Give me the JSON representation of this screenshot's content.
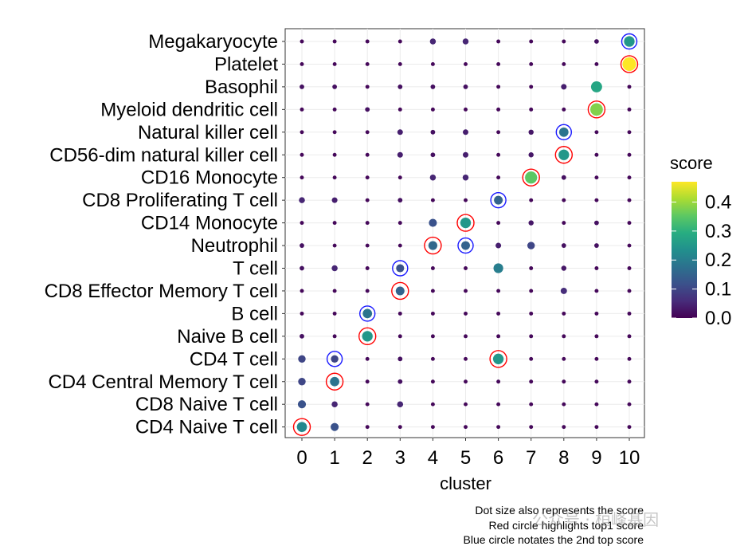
{
  "chart_data": {
    "type": "scatter",
    "subtype": "dot-plot",
    "xlabel": "cluster",
    "ylabel": "",
    "x_categories": [
      "0",
      "1",
      "2",
      "3",
      "4",
      "5",
      "6",
      "7",
      "8",
      "9",
      "10"
    ],
    "y_categories": [
      "CD4 Naive T cell",
      "CD8 Naive T cell",
      "CD4 Central Memory T cell",
      "CD4 T cell",
      "Naive B cell",
      "B cell",
      "CD8 Effector Memory T cell",
      "T cell",
      "Neutrophil",
      "CD14 Monocyte",
      "CD8 Proliferating T cell",
      "CD16 Monocyte",
      "CD56-dim natural killer cell",
      "Natural killer cell",
      "Myeloid dendritic cell",
      "Basophil",
      "Platelet",
      "Megakaryocyte"
    ],
    "legend": {
      "title": "score",
      "ticks": [
        "0.0",
        "0.1",
        "0.2",
        "0.3",
        "0.4"
      ],
      "range": [
        0,
        0.47
      ],
      "position": "right"
    },
    "colormap": [
      "#440154",
      "#472c7a",
      "#3b518b",
      "#2c718e",
      "#21908d",
      "#27ad81",
      "#5cc863",
      "#aadc32",
      "#fde725"
    ],
    "highlight_colors": {
      "top1": "#ff0000",
      "top2": "#1a1aff"
    },
    "points": [
      {
        "row": "Megakaryocyte",
        "scores": [
          0.01,
          0.01,
          0.01,
          0.01,
          0.05,
          0.05,
          0.01,
          0.01,
          0.01,
          0.02,
          0.25
        ],
        "top1": null,
        "top2": 10
      },
      {
        "row": "Platelet",
        "scores": [
          0.01,
          0.01,
          0.01,
          0.01,
          0.01,
          0.01,
          0.01,
          0.01,
          0.01,
          0.01,
          0.47
        ],
        "top1": 10,
        "top2": null
      },
      {
        "row": "Basophil",
        "scores": [
          0.02,
          0.02,
          0.01,
          0.02,
          0.02,
          0.02,
          0.01,
          0.01,
          0.04,
          0.28,
          0.01
        ],
        "top1": null,
        "top2": null
      },
      {
        "row": "Myeloid dendritic cell",
        "scores": [
          0.01,
          0.01,
          0.02,
          0.01,
          0.01,
          0.01,
          0.01,
          0.01,
          0.01,
          0.38,
          0.01
        ],
        "top1": 9,
        "top2": null
      },
      {
        "row": "Natural killer cell",
        "scores": [
          0.01,
          0.01,
          0.01,
          0.04,
          0.02,
          0.04,
          0.01,
          0.03,
          0.18,
          0.01,
          0.01
        ],
        "top1": null,
        "top2": 8
      },
      {
        "row": "CD56-dim natural killer cell",
        "scores": [
          0.01,
          0.01,
          0.01,
          0.04,
          0.02,
          0.04,
          0.01,
          0.03,
          0.25,
          0.01,
          0.01
        ],
        "top1": 8,
        "top2": null
      },
      {
        "row": "CD16 Monocyte",
        "scores": [
          0.01,
          0.01,
          0.01,
          0.01,
          0.05,
          0.05,
          0.01,
          0.35,
          0.02,
          0.01,
          0.01
        ],
        "top1": 7,
        "top2": null
      },
      {
        "row": "CD8 Proliferating T cell",
        "scores": [
          0.05,
          0.04,
          0.01,
          0.02,
          0.01,
          0.01,
          0.15,
          0.01,
          0.01,
          0.01,
          0.01
        ],
        "top1": null,
        "top2": 6
      },
      {
        "row": "CD14 Monocyte",
        "scores": [
          0.01,
          0.01,
          0.01,
          0.01,
          0.12,
          0.25,
          0.01,
          0.03,
          0.01,
          0.02,
          0.01
        ],
        "top1": 5,
        "top2": null
      },
      {
        "row": "Neutrophil",
        "scores": [
          0.02,
          0.01,
          0.01,
          0.01,
          0.16,
          0.15,
          0.04,
          0.1,
          0.02,
          0.02,
          0.01
        ],
        "top1": 4,
        "top2": 5
      },
      {
        "row": "T cell",
        "scores": [
          0.02,
          0.05,
          0.01,
          0.12,
          0.01,
          0.01,
          0.2,
          0.01,
          0.03,
          0.01,
          0.01
        ],
        "top1": null,
        "top2": 3
      },
      {
        "row": "CD8 Effector Memory T cell",
        "scores": [
          0.01,
          0.01,
          0.01,
          0.15,
          0.01,
          0.01,
          0.01,
          0.01,
          0.06,
          0.01,
          0.01
        ],
        "top1": 3,
        "top2": null
      },
      {
        "row": "B cell",
        "scores": [
          0.01,
          0.01,
          0.18,
          0.01,
          0.01,
          0.01,
          0.01,
          0.01,
          0.01,
          0.01,
          0.01
        ],
        "top1": null,
        "top2": 2
      },
      {
        "row": "Naive B cell",
        "scores": [
          0.02,
          0.01,
          0.25,
          0.01,
          0.01,
          0.01,
          0.01,
          0.01,
          0.01,
          0.01,
          0.01
        ],
        "top1": 2,
        "top2": null
      },
      {
        "row": "CD4 T cell",
        "scores": [
          0.1,
          0.1,
          0.01,
          0.02,
          0.01,
          0.01,
          0.25,
          0.01,
          0.01,
          0.01,
          0.01
        ],
        "top1": 6,
        "top2": 1
      },
      {
        "row": "CD4 Central Memory T cell",
        "scores": [
          0.1,
          0.18,
          0.01,
          0.02,
          0.01,
          0.01,
          0.01,
          0.01,
          0.01,
          0.01,
          0.01
        ],
        "top1": 1,
        "top2": null
      },
      {
        "row": "CD8 Naive T cell",
        "scores": [
          0.12,
          0.05,
          0.01,
          0.05,
          0.01,
          0.01,
          0.01,
          0.01,
          0.01,
          0.01,
          0.01
        ],
        "top1": null,
        "top2": null
      },
      {
        "row": "CD4 Naive T cell",
        "scores": [
          0.22,
          0.12,
          0.01,
          0.01,
          0.01,
          0.01,
          0.01,
          0.01,
          0.01,
          0.01,
          0.01
        ],
        "top1": 0,
        "top2": null
      }
    ]
  },
  "captions": {
    "line1": "Dot size also represents the score",
    "line2": "Red circle highlights top1 score",
    "line3": "Blue circle notates the 2nd top score"
  },
  "watermark": "公众号 · 桓峰基因"
}
